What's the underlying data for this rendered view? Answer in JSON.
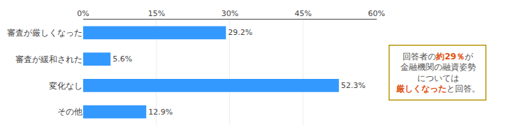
{
  "chart_data": {
    "type": "bar",
    "orientation": "horizontal",
    "categories": [
      "審査が厳しくなった",
      "審査が緩和された",
      "変化なし",
      "その他"
    ],
    "values": [
      29.2,
      5.6,
      52.3,
      12.9
    ],
    "value_labels": [
      "29.2%",
      "5.6%",
      "52.3%",
      "12.9%"
    ],
    "data_labels": true,
    "color": "#3399ff",
    "xlim": [
      0,
      60
    ],
    "xticks": [
      {
        "value": 0,
        "label": "0%"
      },
      {
        "value": 15,
        "label": "15%"
      },
      {
        "value": 30,
        "label": "30%"
      },
      {
        "value": 45,
        "label": "45%"
      },
      {
        "value": 60,
        "label": "60%"
      }
    ],
    "grid": true,
    "annotations": [
      {
        "color": "#b8960c",
        "lines": [
          [
            {
              "text": "回答者の",
              "color": "#555555"
            },
            {
              "text": "約29％",
              "color": "#e05010"
            },
            {
              "text": "が",
              "color": "#555555"
            }
          ],
          [
            {
              "text": "金融機関の融資姿勢",
              "color": "#555555"
            }
          ],
          [
            {
              "text": "については",
              "color": "#555555"
            }
          ],
          [
            {
              "text": "厳しくなった",
              "color": "#e05010"
            },
            {
              "text": "と回答。",
              "color": "#555555"
            }
          ]
        ]
      }
    ]
  }
}
